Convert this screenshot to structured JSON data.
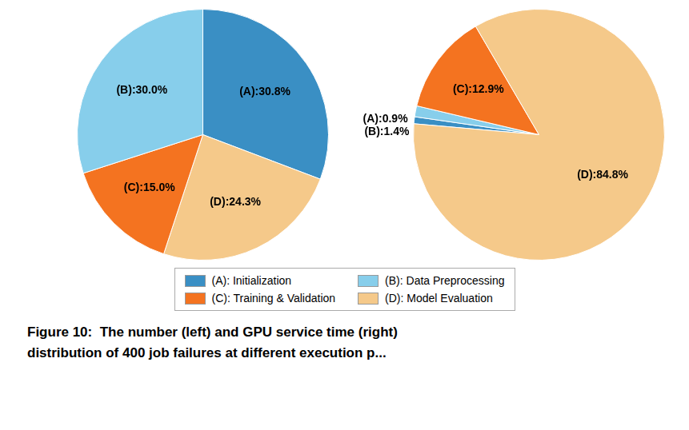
{
  "chart_data": [
    {
      "type": "pie",
      "categories": [
        "(A): Initialization",
        "(D): Model Evaluation",
        "(C): Training & Validation",
        "(B): Data Preprocessing"
      ],
      "values": [
        30.8,
        24.3,
        15.0,
        30.0
      ],
      "value_labels": [
        "(A):30.8%",
        "(D):24.3%",
        "(C):15.0%",
        "(B):30.0%"
      ],
      "colors": [
        "#3a8fc4",
        "#f5c98a",
        "#f47320",
        "#87ceeb"
      ],
      "data_labels": true
    },
    {
      "type": "pie",
      "categories": [
        "(A): Initialization",
        "(B): Data Preprocessing",
        "(C): Training & Validation",
        "(D): Model Evaluation"
      ],
      "values": [
        0.9,
        1.4,
        12.9,
        84.8
      ],
      "value_labels": [
        "(A):0.9%",
        "(B):1.4%",
        "(C):12.9%",
        "(D):84.8%"
      ],
      "colors": [
        "#3a8fc4",
        "#87ceeb",
        "#f47320",
        "#f5c98a"
      ],
      "data_labels": true,
      "legend": "bottom"
    }
  ],
  "annotations": [
    "Figure 10:  The number (left) and GPU service time (right)",
    "distribution of 400 job failures at different execution p..."
  ]
}
